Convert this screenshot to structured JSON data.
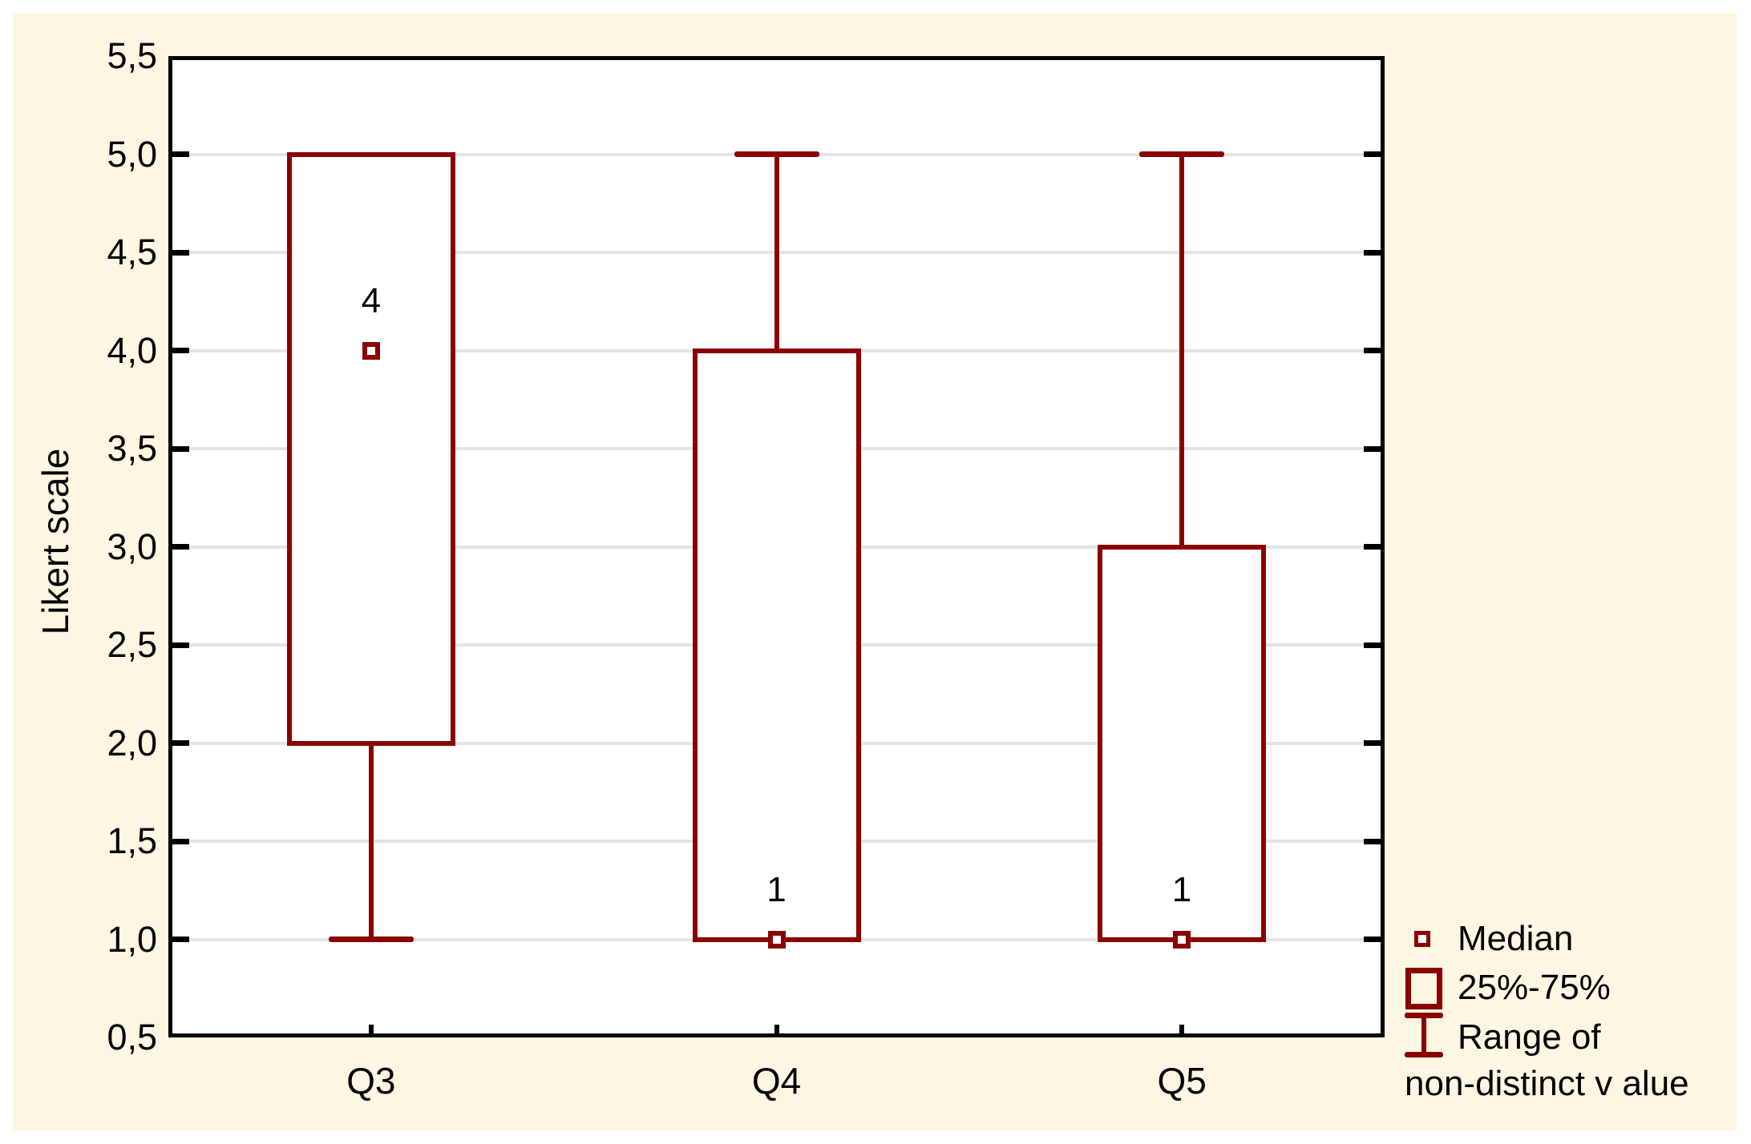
{
  "colors": {
    "accent": "#8B0000",
    "grid": "#E4E4E4",
    "background": "#FDF6E3",
    "frame": "#000000",
    "plot_background": "#FFFFFF"
  },
  "legend": {
    "items": [
      {
        "symbol": "median-marker",
        "label": "Median"
      },
      {
        "symbol": "iqr-box",
        "label": "25%-75%"
      },
      {
        "symbol": "whisker-range",
        "label": "Range of",
        "label_line2": "non-distinct v alue"
      }
    ]
  },
  "chart_data": {
    "type": "boxplot",
    "title": "",
    "xlabel": "",
    "ylabel": "Likert scale",
    "ylim": [
      0.5,
      5.5
    ],
    "grid": true,
    "legend_position": "bottom-right-outside",
    "categories": [
      "Q3",
      "Q4",
      "Q5"
    ],
    "yticks": [
      {
        "value": 5.5,
        "label": "5,5"
      },
      {
        "value": 5.0,
        "label": "5,0"
      },
      {
        "value": 4.5,
        "label": "4,5"
      },
      {
        "value": 4.0,
        "label": "4,0"
      },
      {
        "value": 3.5,
        "label": "3,5"
      },
      {
        "value": 3.0,
        "label": "3,0"
      },
      {
        "value": 2.5,
        "label": "2,5"
      },
      {
        "value": 2.0,
        "label": "2,0"
      },
      {
        "value": 1.5,
        "label": "1,5"
      },
      {
        "value": 1.0,
        "label": "1,0"
      },
      {
        "value": 0.5,
        "label": "0,5"
      }
    ],
    "series": [
      {
        "name": "Q3",
        "q1": 2,
        "q3": 5,
        "median": 4,
        "whisker_low": 1,
        "whisker_high": 5,
        "median_label": "4"
      },
      {
        "name": "Q4",
        "q1": 1,
        "q3": 4,
        "median": 1,
        "whisker_low": 1,
        "whisker_high": 5,
        "median_label": "1"
      },
      {
        "name": "Q5",
        "q1": 1,
        "q3": 3,
        "median": 1,
        "whisker_low": 1,
        "whisker_high": 5,
        "median_label": "1"
      }
    ]
  }
}
